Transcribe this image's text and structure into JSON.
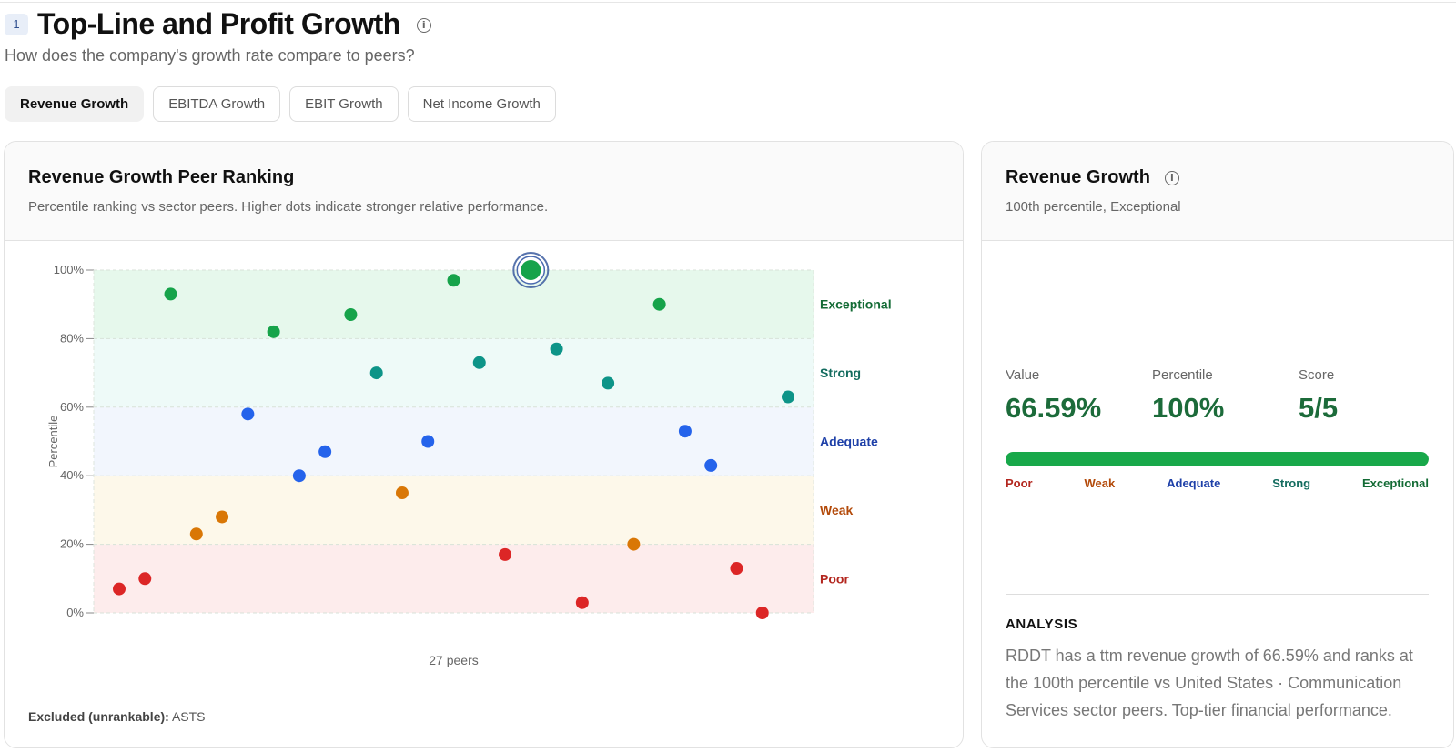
{
  "section": {
    "number": "1",
    "title": "Top-Line and Profit Growth",
    "subtitle": "How does the company's growth rate compare to peers?"
  },
  "tabs": [
    {
      "label": "Revenue Growth",
      "active": true
    },
    {
      "label": "EBITDA Growth",
      "active": false
    },
    {
      "label": "EBIT Growth",
      "active": false
    },
    {
      "label": "Net Income Growth",
      "active": false
    }
  ],
  "chart_card": {
    "title": "Revenue Growth Peer Ranking",
    "description": "Percentile ranking vs sector peers. Higher dots indicate stronger relative performance.",
    "excluded_label": "Excluded (unrankable):",
    "excluded_value": "ASTS"
  },
  "chart_data": {
    "type": "scatter",
    "ylabel": "Percentile",
    "xlabel": "27 peers",
    "ylim": [
      0,
      100
    ],
    "yticks": [
      "0%",
      "20%",
      "40%",
      "60%",
      "80%",
      "100%"
    ],
    "bands": [
      {
        "name": "Poor",
        "from": 0,
        "to": 20,
        "color": "#b3261e",
        "fill": "#fdecec"
      },
      {
        "name": "Weak",
        "from": 20,
        "to": 40,
        "color": "#b34a0a",
        "fill": "#fdf8ea"
      },
      {
        "name": "Adequate",
        "from": 40,
        "to": 60,
        "color": "#1e40a8",
        "fill": "#f2f6fd"
      },
      {
        "name": "Strong",
        "from": 60,
        "to": 80,
        "color": "#126b5e",
        "fill": "#eefaf8"
      },
      {
        "name": "Exceptional",
        "from": 80,
        "to": 100,
        "color": "#136b35",
        "fill": "#e6f8ec"
      }
    ],
    "points": [
      {
        "x": 1,
        "y": 7
      },
      {
        "x": 2,
        "y": 10
      },
      {
        "x": 3,
        "y": 93
      },
      {
        "x": 4,
        "y": 23
      },
      {
        "x": 5,
        "y": 28
      },
      {
        "x": 6,
        "y": 58
      },
      {
        "x": 7,
        "y": 82
      },
      {
        "x": 8,
        "y": 40
      },
      {
        "x": 9,
        "y": 47
      },
      {
        "x": 10,
        "y": 87
      },
      {
        "x": 11,
        "y": 70
      },
      {
        "x": 12,
        "y": 35
      },
      {
        "x": 13,
        "y": 50
      },
      {
        "x": 14,
        "y": 97
      },
      {
        "x": 15,
        "y": 73
      },
      {
        "x": 16,
        "y": 17
      },
      {
        "x": 17,
        "y": 100,
        "highlight": true
      },
      {
        "x": 18,
        "y": 77
      },
      {
        "x": 19,
        "y": 3
      },
      {
        "x": 20,
        "y": 67
      },
      {
        "x": 21,
        "y": 20
      },
      {
        "x": 22,
        "y": 90
      },
      {
        "x": 23,
        "y": 53
      },
      {
        "x": 24,
        "y": 43
      },
      {
        "x": 25,
        "y": 13
      },
      {
        "x": 26,
        "y": 0
      },
      {
        "x": 27,
        "y": 63
      }
    ],
    "point_colors": {
      "Poor": "#dc2626",
      "Weak": "#d97706",
      "Adequate": "#2563eb",
      "Strong": "#0d9488",
      "Exceptional": "#16a34a"
    }
  },
  "stats_card": {
    "title": "Revenue Growth",
    "subtitle": "100th percentile, Exceptional",
    "metrics": [
      {
        "label": "Value",
        "value": "66.59%"
      },
      {
        "label": "Percentile",
        "value": "100%"
      },
      {
        "label": "Score",
        "value": "5/5"
      }
    ],
    "bar_fraction": 1.0,
    "scale_labels": [
      "Poor",
      "Weak",
      "Adequate",
      "Strong",
      "Exceptional"
    ],
    "analysis_title": "ANALYSIS",
    "analysis_text": "RDDT has a ttm revenue growth of 66.59% and ranks at the 100th percentile vs United States · Communication Services sector peers. Top-tier financial performance."
  }
}
